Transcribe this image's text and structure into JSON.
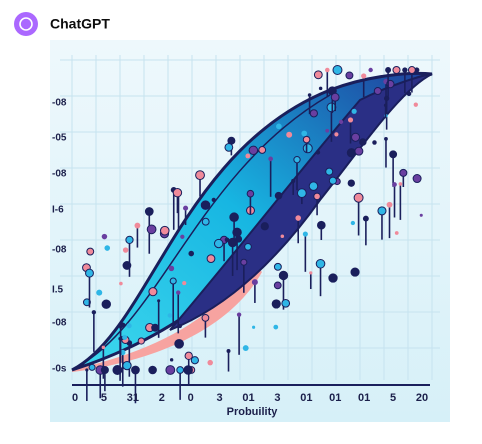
{
  "header": {
    "title": "ChatGPT"
  },
  "image": {
    "y_labels": [
      "-08",
      "-05",
      "-08",
      "I-6",
      "-08",
      "I.5",
      "-08",
      "-0s"
    ],
    "x_labels": [
      "0",
      "5",
      "31",
      "2",
      "0",
      "3",
      "01",
      "3",
      "01",
      "01",
      "01",
      "5",
      "20"
    ],
    "x_axis_title": "Probuility"
  }
}
